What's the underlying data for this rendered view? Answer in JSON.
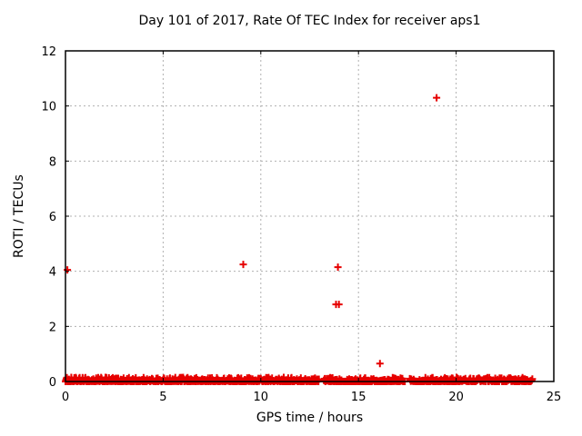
{
  "chart_data": {
    "type": "scatter",
    "title": "Day 101 of 2017, Rate Of TEC Index for receiver aps1",
    "xlabel": "GPS time / hours",
    "ylabel": "ROTI / TECUs",
    "xlim": [
      0,
      25
    ],
    "ylim": [
      0,
      12
    ],
    "xticks": [
      0,
      5,
      10,
      15,
      20,
      25
    ],
    "yticks": [
      0,
      2,
      4,
      6,
      8,
      10,
      12
    ],
    "grid": true,
    "grid_style": "dashed",
    "legend": "none",
    "marker": {
      "shape": "plus",
      "color": "#e60000",
      "size": 8,
      "stroke_width": 2
    },
    "axis_color": "#000000",
    "grid_color": "#b0b0b0",
    "background_color": "#ffffff",
    "outlier_points": [
      [
        0.1,
        4.05
      ],
      [
        9.1,
        4.25
      ],
      [
        13.85,
        2.8
      ],
      [
        13.95,
        4.15
      ],
      [
        14.0,
        2.8
      ],
      [
        16.1,
        0.65
      ],
      [
        19.0,
        10.3
      ]
    ],
    "baseline_band": {
      "description": "dense cluster of ROTI epoch values hugging y=0 across the whole day",
      "x_start": 0.0,
      "x_end": 23.9,
      "y_min": 0.0,
      "y_max": 0.15,
      "y_typical": 0.04,
      "gaps": [
        [
          13.0,
          13.22
        ],
        [
          17.38,
          17.62
        ]
      ],
      "points_per_hour": 40
    }
  }
}
